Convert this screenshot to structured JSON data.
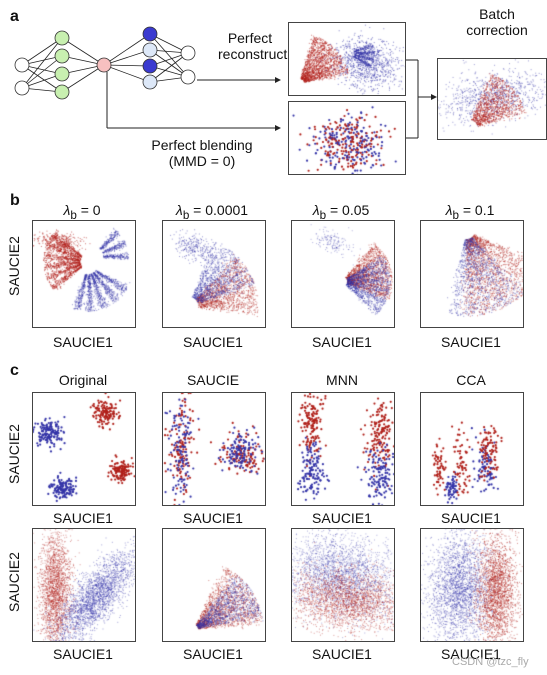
{
  "panel_labels": {
    "a": "a",
    "b": "b",
    "c": "c"
  },
  "panel_a": {
    "perfect_reconstruction": [
      "Perfect",
      "reconstruction"
    ],
    "perfect_blending": [
      "Perfect blending",
      "(MMD = 0)"
    ],
    "batch_correction": [
      "Batch",
      "correction"
    ]
  },
  "panel_b": {
    "titles": [
      "λb = 0",
      "λb = 0.0001",
      "λb = 0.05",
      "λb = 0.1"
    ],
    "ylabel": "SAUCIE2",
    "xlabel": "SAUCIE1"
  },
  "panel_c": {
    "titles": [
      "Original",
      "SAUCIE",
      "MNN",
      "CCA"
    ],
    "ylabel": "SAUCIE2",
    "xlabel": "SAUCIE1"
  },
  "colors": {
    "red": "#b0201a",
    "blue": "#3434a8",
    "node_green": "#c8f0b0",
    "node_blue": "#3a3ad0",
    "node_lightblue": "#dde8f8",
    "node_pink": "#f7c0c0"
  },
  "watermark": "CSDN @tzc_fly"
}
